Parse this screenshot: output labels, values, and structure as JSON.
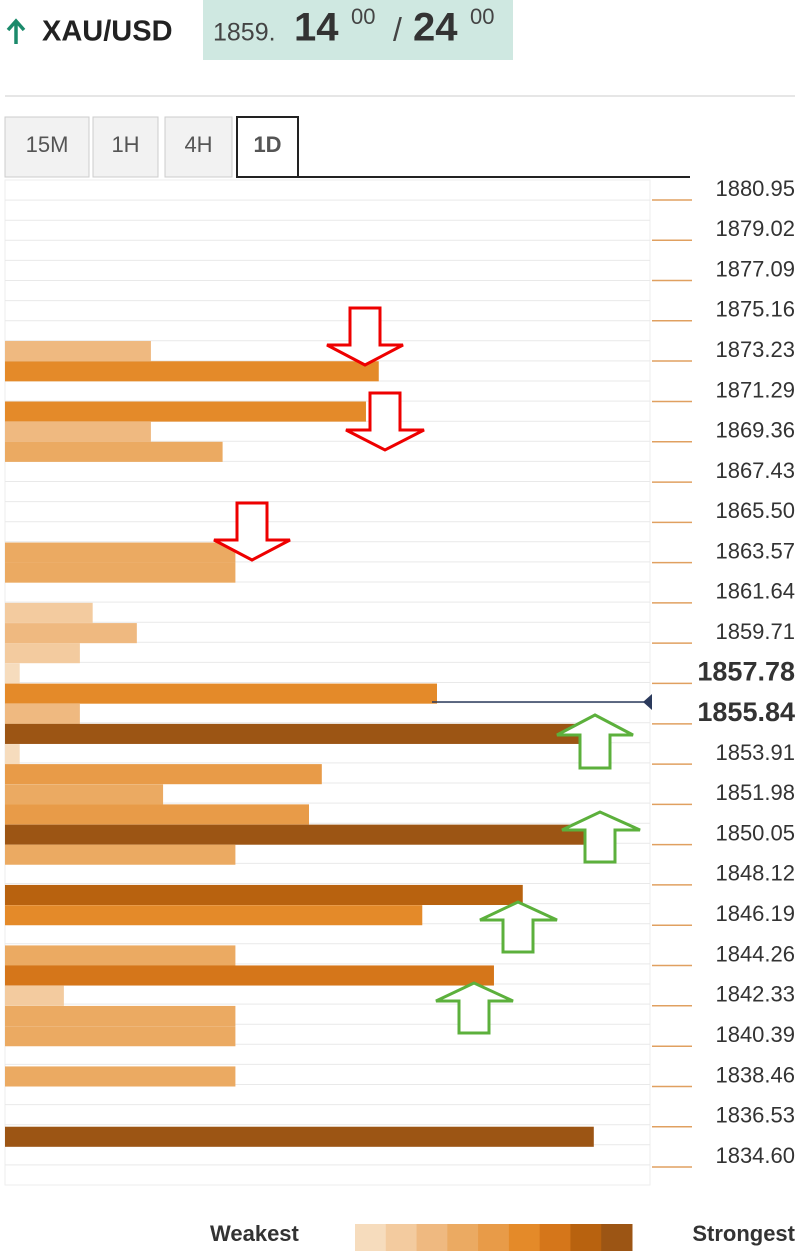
{
  "header": {
    "symbol": "XAU/USD",
    "bid": {
      "main": "1859.",
      "big": "14",
      "small": "00"
    },
    "separator": "/",
    "ask": {
      "big": "24",
      "small": "00"
    }
  },
  "tabs": [
    {
      "label": "15M"
    },
    {
      "label": "1H"
    },
    {
      "label": "4H"
    },
    {
      "label": "1D"
    }
  ],
  "active_tab": 3,
  "levels": {
    "ticks": [
      {
        "value": 1880.95,
        "label": "1880.95"
      },
      {
        "value": 1879.02,
        "label": "1879.02"
      },
      {
        "value": 1877.09,
        "label": "1877.09"
      },
      {
        "value": 1875.16,
        "label": "1875.16"
      },
      {
        "value": 1873.23,
        "label": "1873.23"
      },
      {
        "value": 1871.29,
        "label": "1871.29"
      },
      {
        "value": 1869.36,
        "label": "1869.36"
      },
      {
        "value": 1867.43,
        "label": "1867.43"
      },
      {
        "value": 1865.5,
        "label": "1865.50"
      },
      {
        "value": 1863.57,
        "label": "1863.57"
      },
      {
        "value": 1861.64,
        "label": "1861.64"
      },
      {
        "value": 1859.71,
        "label": "1859.71"
      },
      {
        "value": 1857.78,
        "label": "1857.78",
        "bold": true
      },
      {
        "value": 1855.84,
        "label": "1855.84",
        "bold": true
      },
      {
        "value": 1853.91,
        "label": "1853.91"
      },
      {
        "value": 1851.98,
        "label": "1851.98"
      },
      {
        "value": 1850.05,
        "label": "1850.05"
      },
      {
        "value": 1848.12,
        "label": "1848.12"
      },
      {
        "value": 1846.19,
        "label": "1846.19"
      },
      {
        "value": 1844.26,
        "label": "1844.26"
      },
      {
        "value": 1842.33,
        "label": "1842.33"
      },
      {
        "value": 1840.39,
        "label": "1840.39"
      },
      {
        "value": 1838.46,
        "label": "1838.46"
      },
      {
        "value": 1836.53,
        "label": "1836.53"
      },
      {
        "value": 1834.6,
        "label": "1834.60"
      }
    ],
    "current_price": 1856.41,
    "bars": [
      {
        "price": 1873.23,
        "strength": 22.8,
        "level": 3
      },
      {
        "price": 1872.26,
        "strength": 58.4,
        "level": 6
      },
      {
        "price": 1870.33,
        "strength": 56.4,
        "level": 6
      },
      {
        "price": 1869.36,
        "strength": 22.8,
        "level": 3
      },
      {
        "price": 1868.4,
        "strength": 34,
        "level": 4
      },
      {
        "price": 1863.57,
        "strength": 36,
        "level": 4
      },
      {
        "price": 1862.61,
        "strength": 36,
        "level": 4
      },
      {
        "price": 1860.68,
        "strength": 13.7,
        "level": 2
      },
      {
        "price": 1859.71,
        "strength": 20.6,
        "level": 3
      },
      {
        "price": 1858.75,
        "strength": 11.7,
        "level": 2
      },
      {
        "price": 1857.78,
        "strength": 2.3,
        "level": 1
      },
      {
        "price": 1856.81,
        "strength": 67.5,
        "level": 6
      },
      {
        "price": 1855.84,
        "strength": 11.7,
        "level": 3
      },
      {
        "price": 1854.88,
        "strength": 89.8,
        "level": 9
      },
      {
        "price": 1853.91,
        "strength": 2.3,
        "level": 1
      },
      {
        "price": 1852.95,
        "strength": 49.5,
        "level": 5
      },
      {
        "price": 1851.98,
        "strength": 24.7,
        "level": 4
      },
      {
        "price": 1851.02,
        "strength": 47.5,
        "level": 5
      },
      {
        "price": 1850.05,
        "strength": 92.2,
        "level": 9
      },
      {
        "price": 1849.09,
        "strength": 36,
        "level": 4
      },
      {
        "price": 1847.16,
        "strength": 80.9,
        "level": 8
      },
      {
        "price": 1846.19,
        "strength": 65.2,
        "level": 6
      },
      {
        "price": 1844.26,
        "strength": 36,
        "level": 4
      },
      {
        "price": 1843.3,
        "strength": 76.4,
        "level": 7
      },
      {
        "price": 1842.33,
        "strength": 9.2,
        "level": 2
      },
      {
        "price": 1841.36,
        "strength": 36,
        "level": 4
      },
      {
        "price": 1840.39,
        "strength": 36,
        "level": 4
      },
      {
        "price": 1838.46,
        "strength": 36,
        "level": 4
      },
      {
        "price": 1835.57,
        "strength": 92,
        "level": 9
      }
    ]
  },
  "legend": {
    "weakest": "Weakest",
    "strongest": "Strongest",
    "colors": [
      "#f6dcbd",
      "#f3cb9f",
      "#efb980",
      "#ebaa62",
      "#e89b48",
      "#e48a29",
      "#d5761a",
      "#b8620f",
      "#9c5514"
    ]
  }
}
